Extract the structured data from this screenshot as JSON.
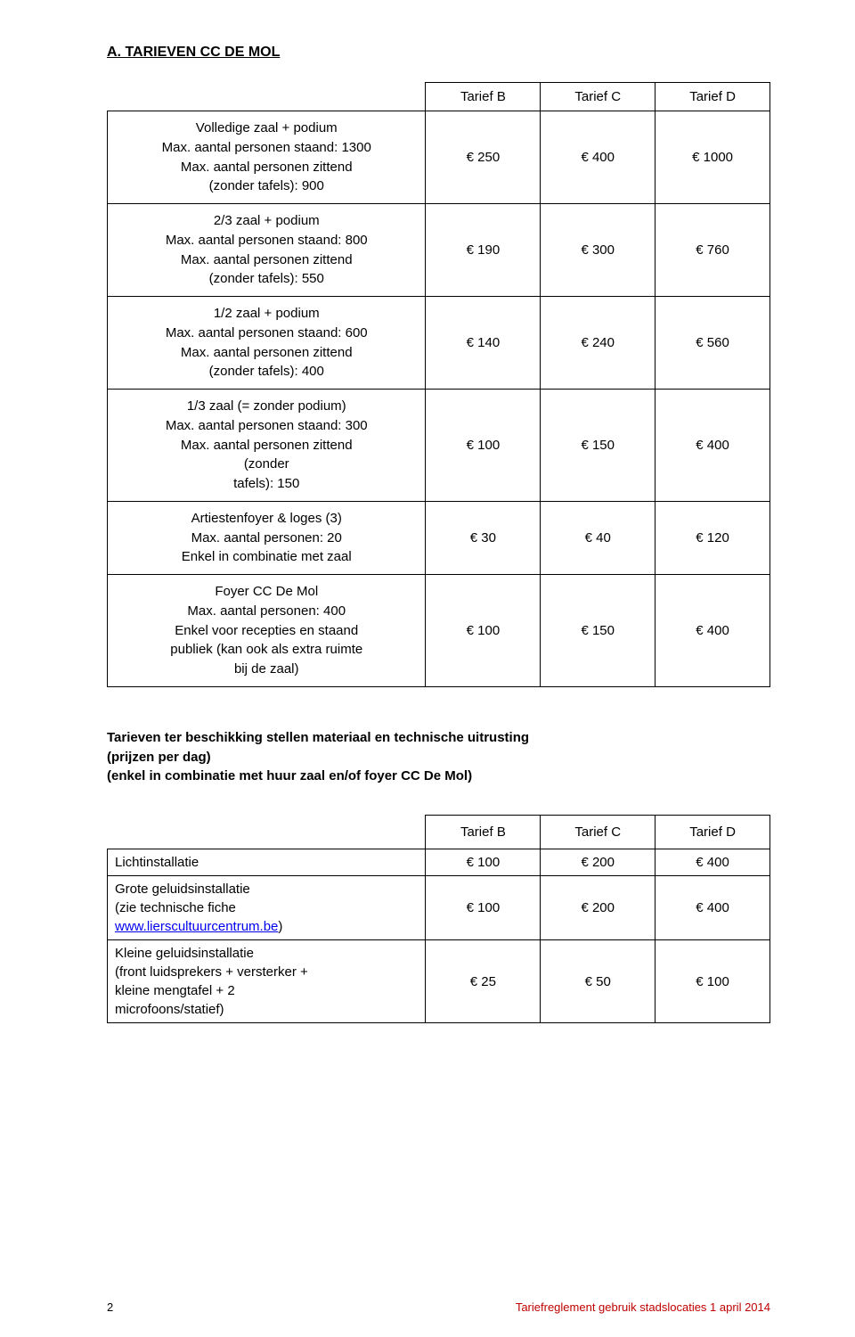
{
  "heading": "A.  TARIEVEN CC DE MOL",
  "table1": {
    "headers": [
      "Tarief B",
      "Tarief C",
      "Tarief D"
    ],
    "rows": [
      {
        "lines": [
          "Volledige zaal + podium",
          "Max. aantal personen staand: 1300",
          "Max. aantal personen zittend",
          "(zonder tafels): 900"
        ],
        "b": "€ 250",
        "c": "€ 400",
        "d": "€ 1000"
      },
      {
        "lines": [
          "2/3 zaal + podium",
          "Max. aantal personen staand: 800",
          "Max. aantal personen zittend",
          "(zonder tafels): 550"
        ],
        "b": "€ 190",
        "c": "€ 300",
        "d": "€ 760"
      },
      {
        "lines": [
          "1/2 zaal + podium",
          "Max. aantal personen staand: 600",
          "Max. aantal personen zittend",
          "(zonder tafels): 400"
        ],
        "b": "€ 140",
        "c": "€ 240",
        "d": "€ 560"
      },
      {
        "lines": [
          "1/3 zaal (= zonder podium)",
          "Max. aantal personen staand: 300",
          "Max. aantal personen zittend",
          "(zonder",
          "tafels): 150"
        ],
        "b": "€ 100",
        "c": "€ 150",
        "d": "€ 400"
      },
      {
        "lines": [
          "Artiestenfoyer & loges (3)",
          "Max. aantal personen: 20",
          "Enkel in combinatie met zaal"
        ],
        "b": "€ 30",
        "c": "€ 40",
        "d": "€ 120"
      },
      {
        "lines": [
          "Foyer CC De Mol",
          "Max. aantal personen: 400",
          "Enkel voor recepties en staand",
          "publiek (kan ook als extra ruimte",
          "bij de zaal)"
        ],
        "b": "€ 100",
        "c": "€ 150",
        "d": "€ 400"
      }
    ]
  },
  "subText": {
    "l1": "Tarieven ter beschikking stellen materiaal en technische uitrusting",
    "l2": "(prijzen per dag)",
    "l3": "(enkel in combinatie met huur zaal en/of foyer CC De Mol)"
  },
  "table2": {
    "headers": [
      "Tarief B",
      "Tarief C",
      "Tarief D"
    ],
    "rows": [
      {
        "lines": [
          "Lichtinstallatie"
        ],
        "b": "€ 100",
        "c": "€ 200",
        "d": "€ 400"
      },
      {
        "lines": [
          "Grote geluidsinstallatie",
          "(zie technische fiche"
        ],
        "link": "www.lierscultuurcentrum.be",
        "afterLink": ")",
        "b": "€ 100",
        "c": "€ 200",
        "d": "€ 400"
      },
      {
        "lines": [
          "Kleine geluidsinstallatie",
          "(front luidsprekers + versterker +",
          "kleine mengtafel + 2",
          "microfoons/statief)"
        ],
        "b": "€ 25",
        "c": "€ 50",
        "d": "€ 100"
      }
    ]
  },
  "footer": {
    "pageNum": "2",
    "right": "Tariefreglement gebruik stadslocaties 1 april 2014"
  }
}
